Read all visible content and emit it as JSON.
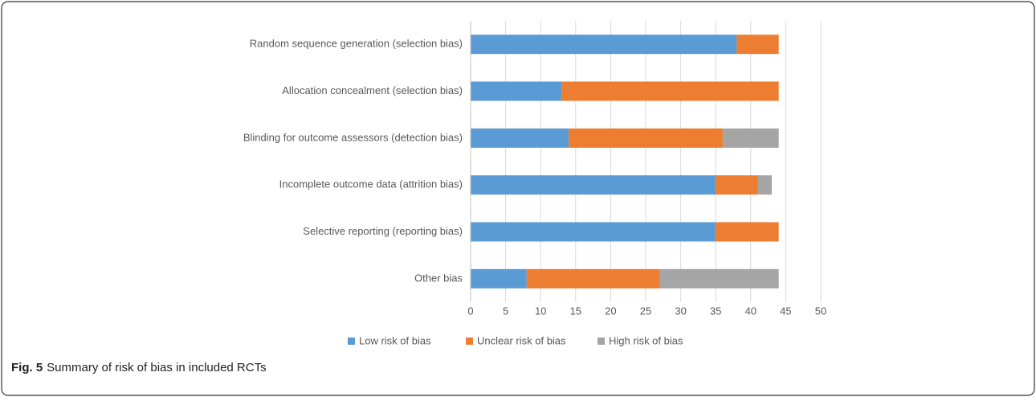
{
  "chart_data": {
    "type": "stacked-barh",
    "caption_label": "Fig. 5",
    "caption": "Summary of risk of bias in included RCTs",
    "categories": [
      "Random sequence generation (selection bias)",
      "Allocation concealment (selection bias)",
      "Blinding for outcome assessors (detection bias)",
      "Incomplete outcome data (attrition bias)",
      "Selective reporting (reporting bias)",
      "Other bias"
    ],
    "series": [
      {
        "name": "Low risk of bias",
        "color": "#5b9bd5",
        "values": [
          38,
          13,
          14,
          35,
          35,
          8
        ]
      },
      {
        "name": "Unclear risk of bias",
        "color": "#ed7d31",
        "values": [
          6,
          31,
          22,
          6,
          9,
          19
        ]
      },
      {
        "name": "High risk of bias",
        "color": "#a5a5a5",
        "values": [
          0,
          0,
          8,
          2,
          0,
          17
        ]
      }
    ],
    "xlim": [
      0,
      50
    ],
    "xticks": [
      0,
      5,
      10,
      15,
      20,
      25,
      30,
      35,
      40,
      45,
      50
    ],
    "grid": true,
    "legend": "bottom"
  }
}
